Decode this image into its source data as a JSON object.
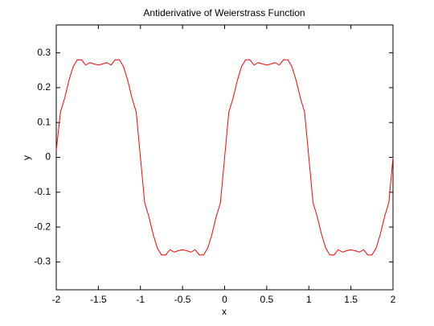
{
  "chart_data": {
    "type": "line",
    "title": "Antiderivative of Weierstrass Function",
    "x_label": "x",
    "y_label": "y",
    "x": [
      -2,
      -1.95,
      -1.9,
      -1.85,
      -1.8,
      -1.75,
      -1.7,
      -1.65,
      -1.6,
      -1.55,
      -1.5,
      -1.45,
      -1.4,
      -1.35,
      -1.3,
      -1.25,
      -1.2,
      -1.15,
      -1.1,
      -1.05,
      -1,
      -0.95,
      -0.9,
      -0.85,
      -0.8,
      -0.75,
      -0.7,
      -0.65,
      -0.6,
      -0.55,
      -0.5,
      -0.45,
      -0.4,
      -0.35,
      -0.3,
      -0.25,
      -0.2,
      -0.15,
      -0.1,
      -0.05,
      0,
      0.05,
      0.1,
      0.15,
      0.2,
      0.25,
      0.3,
      0.35,
      0.4,
      0.45,
      0.5,
      0.55,
      0.6,
      0.65,
      0.7,
      0.75,
      0.8,
      0.85,
      0.9,
      0.95,
      1,
      1.05,
      1.1,
      1.15,
      1.2,
      1.25,
      1.3,
      1.35,
      1.4,
      1.45,
      1.5,
      1.55,
      1.6,
      1.65,
      1.7,
      1.75,
      1.8,
      1.85,
      1.9,
      1.95,
      2
    ],
    "series": [
      {
        "name": "y",
        "color": "#ff0000",
        "values": [
          0.02,
          0.13,
          0.17,
          0.22,
          0.26,
          0.28,
          0.28,
          0.265,
          0.272,
          0.268,
          0.265,
          0.268,
          0.272,
          0.265,
          0.28,
          0.28,
          0.26,
          0.22,
          0.17,
          0.13,
          0,
          -0.13,
          -0.17,
          -0.22,
          -0.26,
          -0.28,
          -0.28,
          -0.265,
          -0.272,
          -0.268,
          -0.265,
          -0.268,
          -0.272,
          -0.265,
          -0.28,
          -0.28,
          -0.26,
          -0.22,
          -0.17,
          -0.13,
          0,
          0.13,
          0.17,
          0.22,
          0.26,
          0.28,
          0.28,
          0.265,
          0.272,
          0.268,
          0.265,
          0.268,
          0.272,
          0.265,
          0.28,
          0.28,
          0.26,
          0.22,
          0.17,
          0.13,
          0,
          -0.13,
          -0.17,
          -0.22,
          -0.26,
          -0.28,
          -0.28,
          -0.265,
          -0.272,
          -0.268,
          -0.265,
          -0.268,
          -0.272,
          -0.265,
          -0.28,
          -0.28,
          -0.26,
          -0.22,
          -0.17,
          -0.13,
          0
        ]
      }
    ],
    "xlim": [
      -2,
      2
    ],
    "xticks": [
      -2,
      -1.5,
      -1,
      -0.5,
      0,
      0.5,
      1,
      1.5,
      2
    ],
    "ylim": [
      -0.38,
      0.38
    ],
    "yticks": [
      -0.3,
      -0.2,
      -0.1,
      0,
      0.1,
      0.2,
      0.3
    ]
  }
}
